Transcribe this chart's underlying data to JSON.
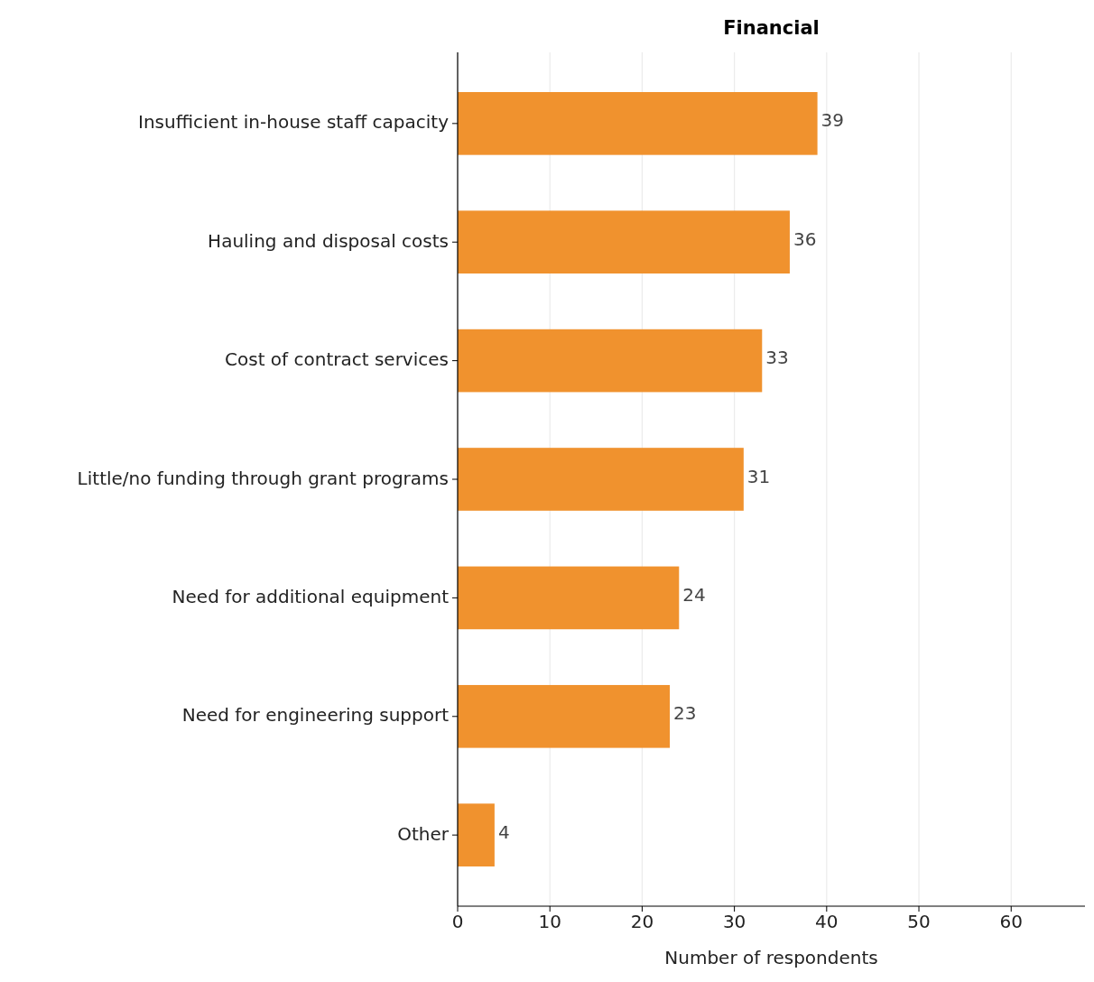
{
  "chart_data": {
    "type": "bar",
    "orientation": "horizontal",
    "title": "Financial",
    "xlabel": "Number of respondents",
    "categories": [
      "Insufficient in-house staff capacity",
      "Hauling and disposal costs",
      "Cost of contract services",
      "Little/no funding through grant programs",
      "Need for additional equipment",
      "Need for engineering support",
      "Other"
    ],
    "values": [
      39,
      36,
      33,
      31,
      24,
      23,
      4
    ],
    "color": "#f0922e",
    "xlim": [
      0,
      68
    ],
    "xticks": [
      0,
      10,
      20,
      30,
      40,
      50,
      60
    ],
    "grid": "x",
    "data_labels": true
  }
}
